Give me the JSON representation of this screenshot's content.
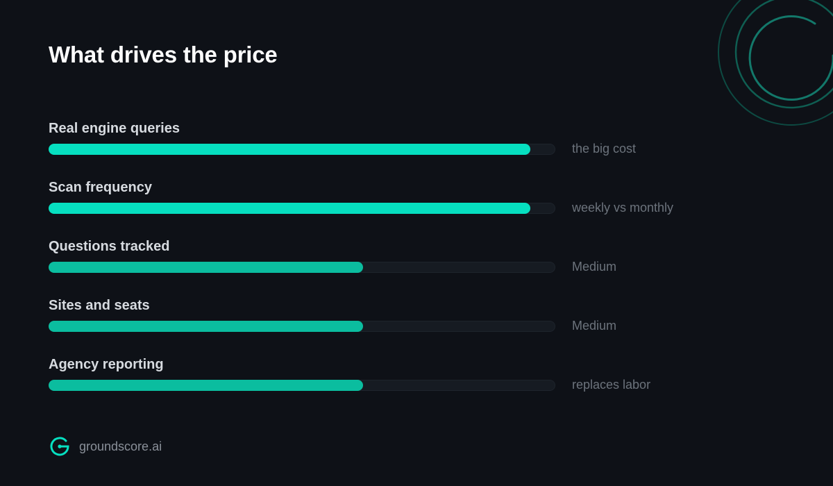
{
  "colors": {
    "background": "#0e1117",
    "fill_high": "#06dfc0",
    "fill_medium": "#0bbd9f",
    "track": "#161b22",
    "ring": "#0f5e52"
  },
  "title": "What drives the price",
  "chart_data": {
    "type": "bar",
    "orientation": "horizontal",
    "categories": [
      "Real engine queries",
      "Scan frequency",
      "Questions tracked",
      "Sites and seats",
      "Agency reporting"
    ],
    "values": [
      0.95,
      0.95,
      0.62,
      0.62,
      0.62
    ],
    "annotations": [
      "the big cost",
      "weekly vs monthly",
      "Medium",
      "Medium",
      "replaces labor"
    ],
    "xlim": [
      0,
      1
    ],
    "grid": false
  },
  "brand": {
    "logo_icon": "groundscore-logo-icon",
    "name": "groundscore.ai"
  }
}
